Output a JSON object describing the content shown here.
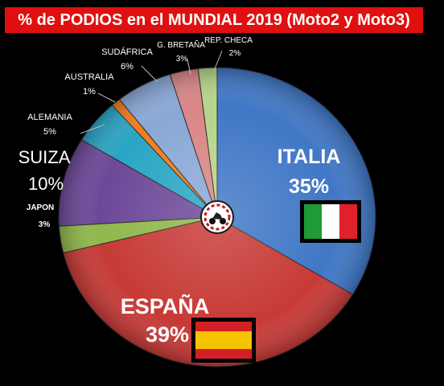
{
  "title": "% de PODIOS en el MUNDIAL 2019 (Moto2 y Moto3)",
  "chart_data": {
    "type": "pie",
    "title": "% de PODIOS en el MUNDIAL 2019 (Moto2 y Moto3)",
    "unit": "%",
    "slices": [
      {
        "label": "ITALIA",
        "value": 35,
        "value_label": "35%",
        "color": "#4077c6",
        "flag": "italy-flag-icon"
      },
      {
        "label": "ESPAÑA",
        "value": 39,
        "value_label": "39%",
        "color": "#c73a36",
        "flag": "spain-flag-icon"
      },
      {
        "label": "JAPON",
        "value": 3,
        "value_label": "3%",
        "color": "#90b84c"
      },
      {
        "label": "SUIZA",
        "value": 10,
        "value_label": "10%",
        "color": "#6d4898"
      },
      {
        "label": "ALEMANIA",
        "value": 5,
        "value_label": "5%",
        "color": "#2aa5c5"
      },
      {
        "label": "AUSTRALIA",
        "value": 1,
        "value_label": "1%",
        "color": "#f07d1c"
      },
      {
        "label": "SUDÁFRICA",
        "value": 6,
        "value_label": "6%",
        "color": "#8aa8d6"
      },
      {
        "label": "G. BRETAÑA",
        "value": 3,
        "value_label": "3%",
        "color": "#d98686"
      },
      {
        "label": "REP. CHECA",
        "value": 2,
        "value_label": "2%",
        "color": "#b6d48a"
      }
    ],
    "legend": "none",
    "center_logo": "motorbike-logo-icon",
    "colors": {
      "background": "#000000",
      "title_bar": "#e01010",
      "label_text": "#ffffff"
    }
  }
}
